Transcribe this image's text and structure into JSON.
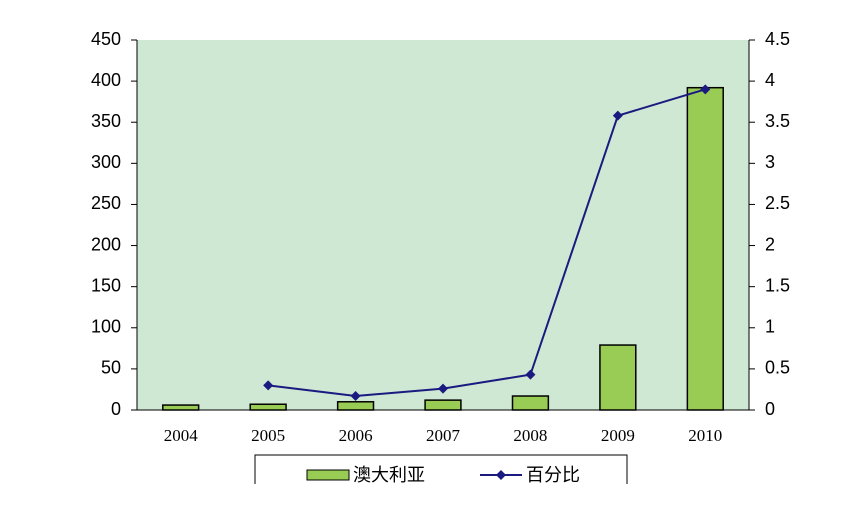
{
  "chart_data": {
    "type": "bar",
    "categories": [
      "2004",
      "2005",
      "2006",
      "2007",
      "2008",
      "2009",
      "2010"
    ],
    "series": [
      {
        "name": "澳大利亚",
        "type": "bar",
        "color": "#99cc55",
        "values": [
          6,
          7,
          10,
          12,
          17,
          79,
          392
        ]
      },
      {
        "name": "百分比",
        "type": "line",
        "axis": "y2",
        "color": "#1a1a80",
        "values": [
          null,
          0.3,
          0.17,
          0.26,
          0.43,
          3.58,
          3.9
        ]
      }
    ],
    "ylim": [
      0,
      450
    ],
    "yticks": [
      0,
      50,
      100,
      150,
      200,
      250,
      300,
      350,
      400,
      450
    ],
    "y2lim": [
      0,
      4.5
    ],
    "y2ticks": [
      0,
      0.5,
      1,
      1.5,
      2,
      2.5,
      3,
      3.5,
      4,
      4.5
    ],
    "grid": false,
    "legend": "bottom",
    "plot_background": "#cfe8d3"
  }
}
